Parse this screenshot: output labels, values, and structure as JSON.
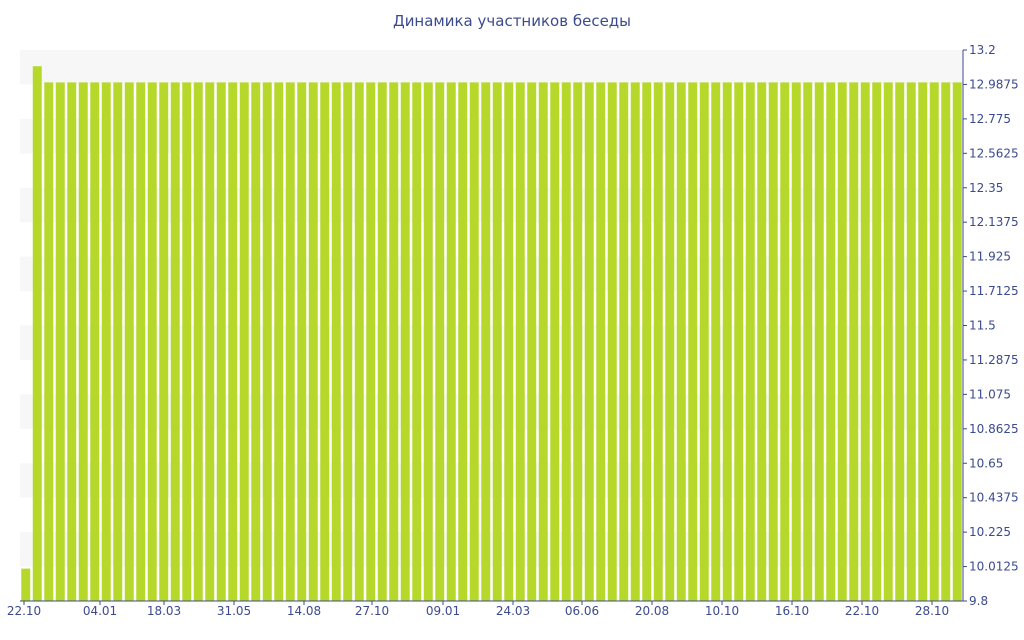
{
  "chart_data": {
    "type": "bar",
    "title": "Динамика участников беседы",
    "xlabel": "",
    "ylabel": "",
    "ylim": [
      9.8,
      13.2
    ],
    "y_ticks": [
      "13.2",
      "12.9875",
      "12.775",
      "12.5625",
      "12.35",
      "12.1375",
      "11.925",
      "11.7125",
      "11.5",
      "11.2875",
      "11.075",
      "10.8625",
      "10.65",
      "10.4375",
      "10.225",
      "10.0125",
      "9.8"
    ],
    "x_tick_labels": [
      "22.10",
      "04.01",
      "18.03",
      "31.05",
      "14.08",
      "27.10",
      "09.01",
      "24.03",
      "06.06",
      "20.08",
      "10.10",
      "16.10",
      "22.10",
      "28.10"
    ],
    "y_axis_position": "right",
    "grid": "alternating horizontal bands",
    "bar_color": "#b6d82a",
    "series": [
      {
        "values": [
          10,
          13.1,
          13,
          13,
          13,
          13,
          13,
          13,
          13,
          13,
          13,
          13,
          13,
          13,
          13,
          13,
          13,
          13,
          13,
          13,
          13,
          13,
          13,
          13,
          13,
          13,
          13,
          13,
          13,
          13,
          13,
          13,
          13,
          13,
          13,
          13,
          13,
          13,
          13,
          13,
          13,
          13,
          13,
          13,
          13,
          13,
          13,
          13,
          13,
          13,
          13,
          13,
          13,
          13,
          13,
          13,
          13,
          13,
          13,
          13,
          13,
          13,
          13,
          13,
          13,
          13,
          13,
          13,
          13,
          13,
          13,
          13,
          13,
          13,
          13,
          13,
          13,
          13,
          13,
          13,
          13,
          13
        ]
      }
    ]
  }
}
